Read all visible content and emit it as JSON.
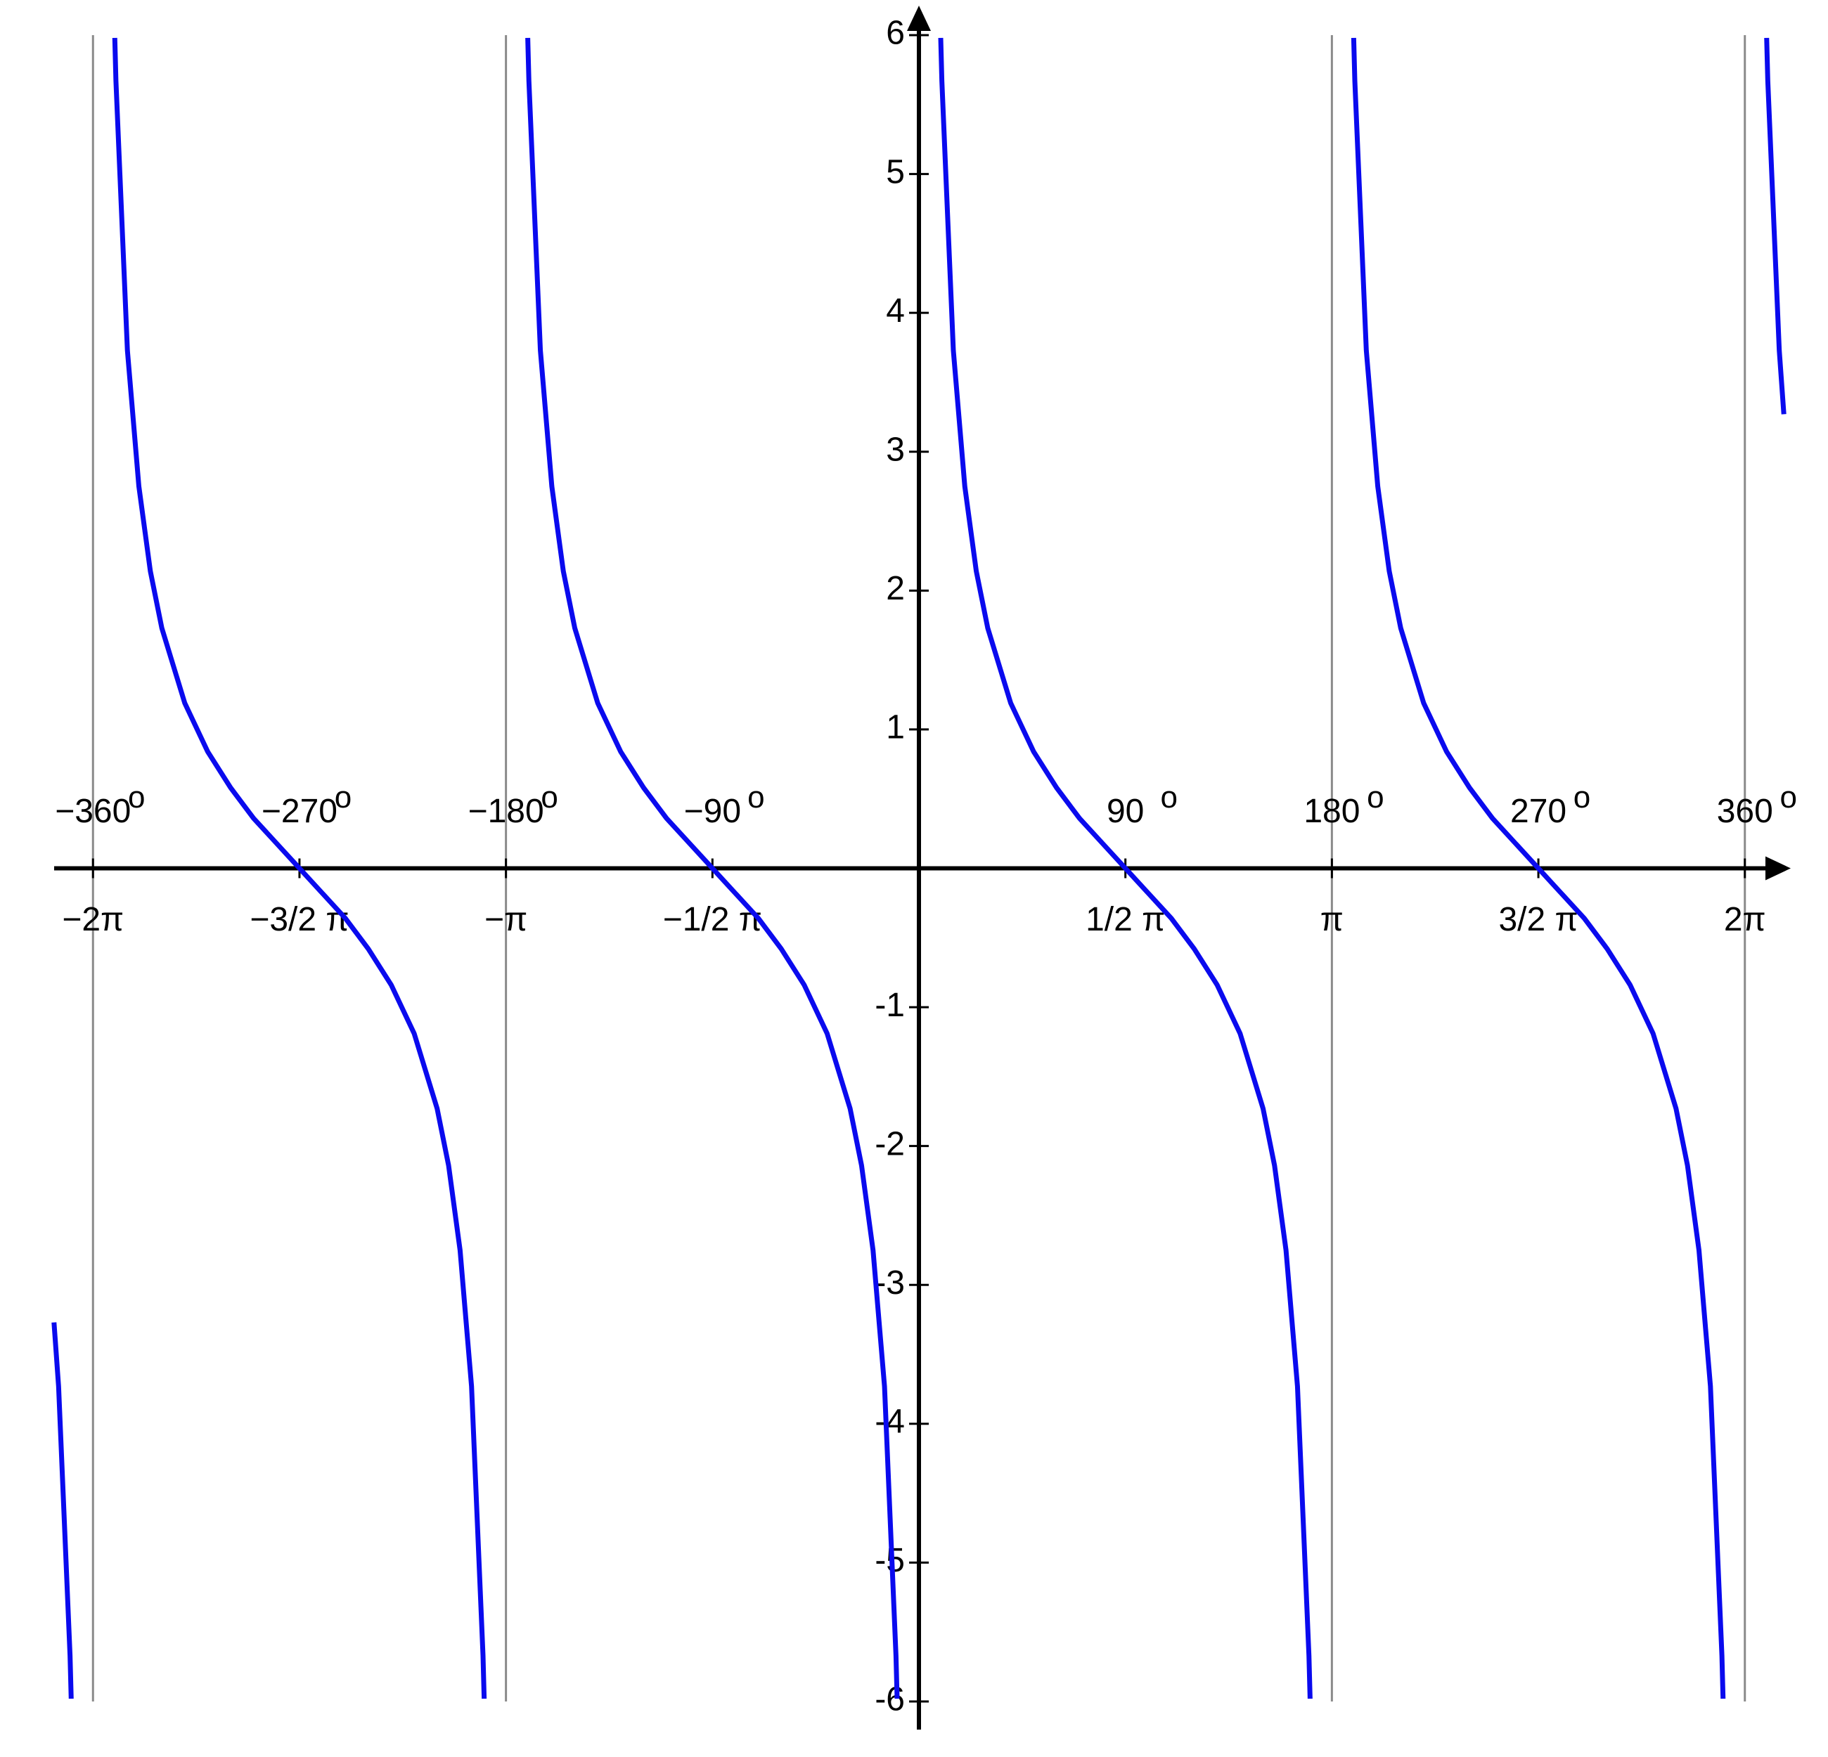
{
  "chart_data": {
    "type": "line",
    "color": "#0a0aee",
    "x": [
      -377,
      -375,
      -370,
      -369.5,
      -360,
      -350.5,
      -350,
      -345,
      -340,
      -335,
      -330,
      -320,
      -310,
      -300,
      -290,
      -280,
      -270,
      -260,
      -250,
      -240,
      -230,
      -220,
      -210,
      -205,
      -200,
      -195,
      -190,
      -189.5,
      -180,
      -170.5,
      -170,
      -165,
      -160,
      -155,
      -150,
      -140,
      -130,
      -120,
      -110,
      -100,
      -90,
      -80,
      -70,
      -60,
      -50,
      -40,
      -30,
      -25,
      -20,
      -15,
      -10,
      -9.5,
      0,
      9.5,
      10,
      15,
      20,
      25,
      30,
      40,
      50,
      60,
      70,
      80,
      90,
      100,
      110,
      120,
      130,
      140,
      150,
      155,
      160,
      165,
      170,
      170.5,
      180,
      189.5,
      190,
      195,
      200,
      205,
      210,
      220,
      230,
      240,
      250,
      260,
      270,
      280,
      290,
      300,
      310,
      320,
      330,
      335,
      340,
      345,
      350,
      350.5,
      360,
      369.5,
      370,
      375,
      377
    ],
    "values": [
      -3.27,
      -3.73,
      -5.67,
      -5.98,
      null,
      5.98,
      5.67,
      3.73,
      2.75,
      2.14,
      1.73,
      1.19,
      0.84,
      0.58,
      0.36,
      0.18,
      0,
      -0.18,
      -0.36,
      -0.58,
      -0.84,
      -1.19,
      -1.73,
      -2.14,
      -2.75,
      -3.73,
      -5.67,
      -5.98,
      null,
      5.98,
      5.67,
      3.73,
      2.75,
      2.14,
      1.73,
      1.19,
      0.84,
      0.58,
      0.36,
      0.18,
      0,
      -0.18,
      -0.36,
      -0.58,
      -0.84,
      -1.19,
      -1.73,
      -2.14,
      -2.75,
      -3.73,
      -5.67,
      -5.98,
      null,
      5.98,
      5.67,
      3.73,
      2.75,
      2.14,
      1.73,
      1.19,
      0.84,
      0.58,
      0.36,
      0.18,
      0,
      -0.18,
      -0.36,
      -0.58,
      -0.84,
      -1.19,
      -1.73,
      -2.14,
      -2.75,
      -3.73,
      -5.67,
      -5.98,
      null,
      5.98,
      5.67,
      3.73,
      2.75,
      2.14,
      1.73,
      1.19,
      0.84,
      0.58,
      0.36,
      0.18,
      0,
      -0.18,
      -0.36,
      -0.58,
      -0.84,
      -1.19,
      -1.73,
      -2.14,
      -2.75,
      -3.73,
      -5.67,
      -5.98,
      null,
      5.98,
      5.67,
      3.73,
      3.27
    ],
    "asymptotes": [
      -360,
      -180,
      180,
      360
    ],
    "xlim": [
      -380,
      380
    ],
    "ylim": [
      -6,
      6
    ],
    "xticks": [
      {
        "value": -360,
        "label": "−2π"
      },
      {
        "value": -270,
        "label": "−3/2 π"
      },
      {
        "value": -180,
        "label": "−π"
      },
      {
        "value": -90,
        "label": "−1/2 π"
      },
      {
        "value": 90,
        "label": "1/2 π"
      },
      {
        "value": 180,
        "label": "π"
      },
      {
        "value": 270,
        "label": "3/2 π"
      },
      {
        "value": 360,
        "label": "2π"
      }
    ],
    "x_degree_ticks": [
      {
        "value": -360,
        "label": "−360",
        "unit": "o"
      },
      {
        "value": -270,
        "label": "−270",
        "unit": "o"
      },
      {
        "value": -180,
        "label": "−180",
        "unit": "o"
      },
      {
        "value": -90,
        "label": "−90",
        "unit": "o"
      },
      {
        "value": 90,
        "label": "90",
        "unit": "o"
      },
      {
        "value": 180,
        "label": "180",
        "unit": "o"
      },
      {
        "value": 270,
        "label": "270",
        "unit": "o"
      },
      {
        "value": 360,
        "label": "360",
        "unit": "o"
      }
    ],
    "yticks": [
      -6,
      -5,
      -4,
      -3,
      -2,
      -1,
      1,
      2,
      3,
      4,
      5,
      6
    ]
  }
}
